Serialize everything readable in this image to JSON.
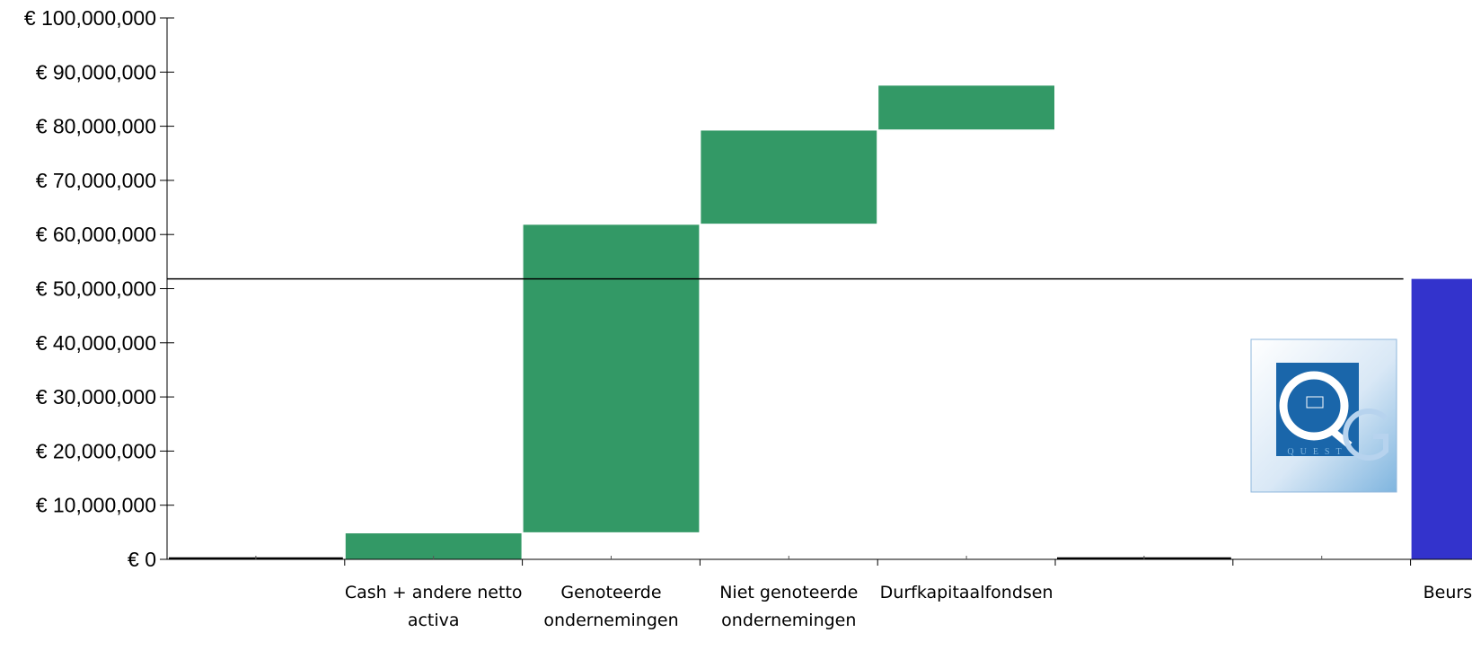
{
  "chart_data": {
    "type": "bar",
    "subtype": "waterfall",
    "categories": [
      "",
      "Cash + andere netto activa",
      "Genoteerde ondernemingen",
      "Niet genoteerde ondernemingen",
      "Durfkapitaalfondsen",
      "",
      "",
      "Beurskapitalisatie"
    ],
    "bars": [
      {
        "category_index": 1,
        "bottom": 0,
        "top": 4800000,
        "value": 4800000
      },
      {
        "category_index": 2,
        "bottom": 5000000,
        "top": 61800000,
        "value": 56800000
      },
      {
        "category_index": 3,
        "bottom": 62000000,
        "top": 79200000,
        "value": 17200000
      },
      {
        "category_index": 4,
        "bottom": 79400000,
        "top": 87500000,
        "value": 8100000
      },
      {
        "category_index": 7,
        "bottom": 0,
        "top": 51800000,
        "value": 51800000
      }
    ],
    "reference_line": {
      "value": 51800000
    },
    "ylim": [
      0,
      100000000
    ],
    "yticks": [
      0,
      10000000,
      20000000,
      30000000,
      40000000,
      50000000,
      60000000,
      70000000,
      80000000,
      90000000,
      100000000
    ],
    "ytick_labels": [
      "€ 0",
      "€ 10,000,000",
      "€ 20,000,000",
      "€ 30,000,000",
      "€ 40,000,000",
      "€ 50,000,000",
      "€ 60,000,000",
      "€ 70,000,000",
      "€ 80,000,000",
      "€ 90,000,000",
      "€ 100,000,000"
    ],
    "xtick_labels": [
      [],
      [
        "Cash + andere netto",
        "activa"
      ],
      [
        "Genoteerde",
        "ondernemingen"
      ],
      [
        "Niet genoteerde",
        "ondernemingen"
      ],
      [
        "Durfkapitaalfondsen"
      ],
      [],
      [],
      [
        "Beurskapitalisatie"
      ]
    ],
    "title": "",
    "xlabel": "",
    "ylabel": "",
    "grid": false,
    "legend": "none",
    "colors": {
      "increase": "#339966",
      "total": "#3333cc",
      "axis": "#000000",
      "reference_line": "#000000"
    }
  },
  "logo": {
    "icon": "quest-for-growth-logo",
    "text": "Q FOR GROWTH QUEST",
    "colors": {
      "dark": "#1a66aa",
      "light": "#7fb5df"
    }
  }
}
